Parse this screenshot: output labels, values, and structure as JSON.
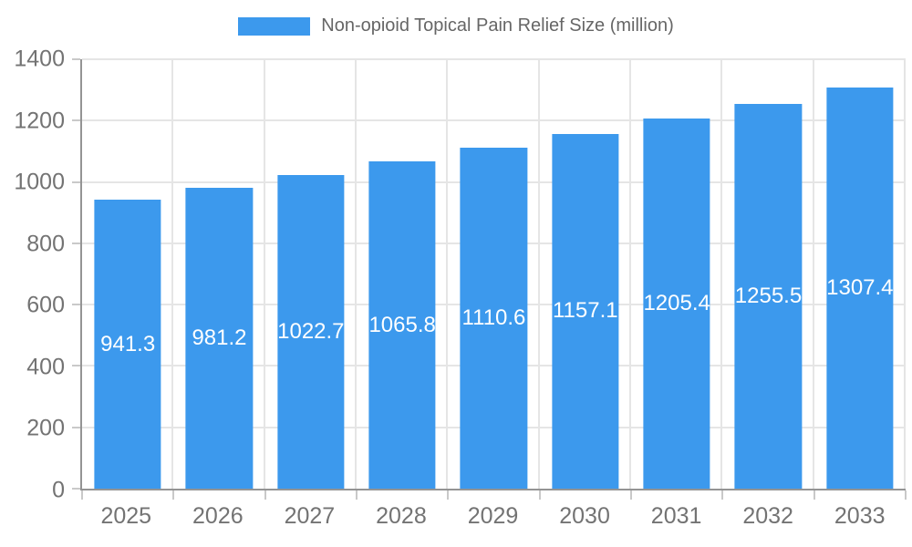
{
  "chart_data": {
    "type": "bar",
    "title": "Non-opioid Topical Pain Relief Size (million)",
    "legend_entries": [
      "Non-opioid Topical Pain Relief Size (million)"
    ],
    "legend_position": "top-center",
    "categories": [
      "2025",
      "2026",
      "2027",
      "2028",
      "2029",
      "2030",
      "2031",
      "2032",
      "2033"
    ],
    "series": [
      {
        "name": "Non-opioid Topical Pain Relief Size (million)",
        "values": [
          941.3,
          981.2,
          1022.7,
          1065.8,
          1110.6,
          1157.1,
          1205.4,
          1255.5,
          1307.4
        ]
      }
    ],
    "value_labels": [
      "941.3",
      "981.2",
      "1022.7",
      "1065.8",
      "1110.6",
      "1157.1",
      "1205.4",
      "1255.5",
      "1307.4"
    ],
    "xlabel": "",
    "ylabel": "",
    "ylim": [
      0,
      1400
    ],
    "yticks": [
      0,
      200,
      400,
      600,
      800,
      1000,
      1200,
      1400
    ],
    "grid": true,
    "colors": {
      "bar": "#3C99ED",
      "grid": "#E5E5E5",
      "axis_line": "#949494",
      "tick_mark": "#C9C9C9",
      "tick_text": "#737373",
      "legend_text": "#666666",
      "bar_label": "#FFFFFF",
      "background": "#FFFFFF"
    }
  }
}
